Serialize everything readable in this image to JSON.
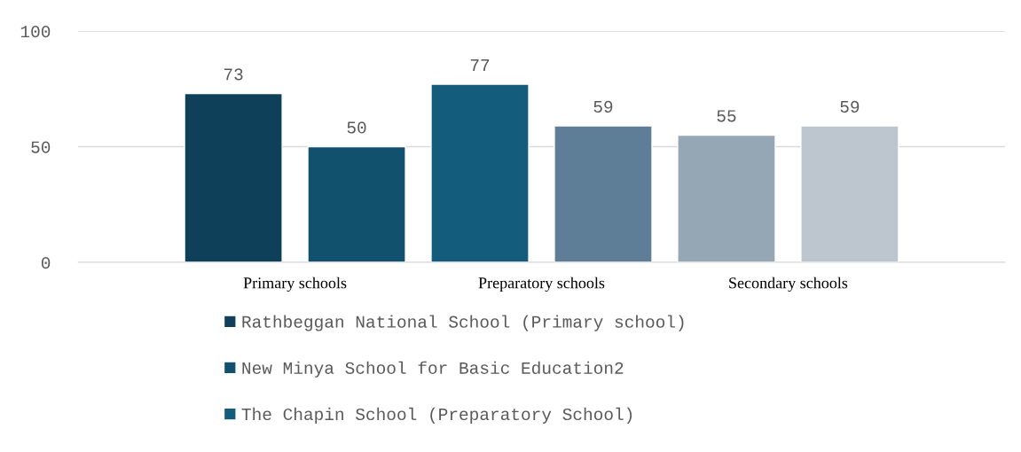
{
  "chart_data": {
    "type": "bar",
    "categories": [
      "Primary schools",
      "Preparatory schools",
      "Secondary schools"
    ],
    "series": [
      {
        "name": "Rathbeggan National School (Primary school)",
        "colors": [
          "#0e4159",
          "#145c7c",
          "#95a6b4"
        ],
        "color": "#0e4159",
        "values": [
          73,
          77,
          55
        ]
      },
      {
        "name": "New Minya School for Basic Education2",
        "colors": [
          "#11516d",
          "#5e7e97",
          "#bdc5cf"
        ],
        "color": "#11516d",
        "values": [
          50,
          59,
          59
        ]
      },
      {
        "name": "The Chapin School (Preparatory School)",
        "color": "#145c7c",
        "values": [
          null,
          null,
          null
        ]
      }
    ],
    "ylim": [
      0,
      100
    ],
    "yticks": [
      0,
      50,
      100
    ],
    "grid": "y",
    "data_labels": true,
    "legend": "bottom"
  }
}
